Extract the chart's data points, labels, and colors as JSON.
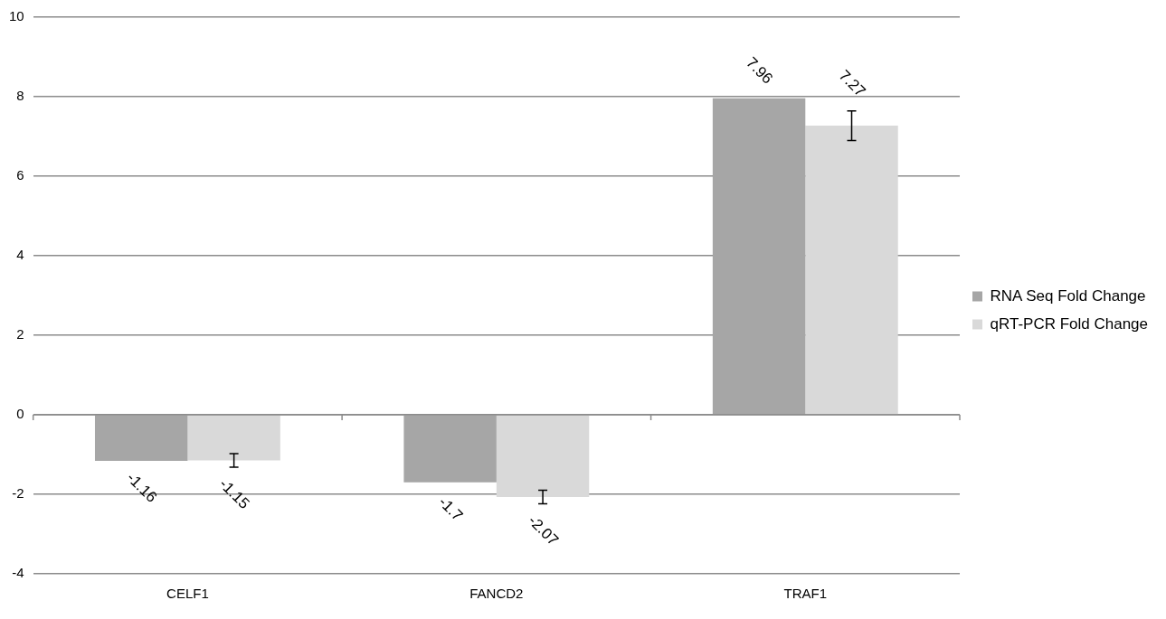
{
  "chart_data": {
    "type": "bar",
    "categories": [
      "CELF1",
      "FANCD2",
      "TRAF1"
    ],
    "series": [
      {
        "name": "RNA Seq Fold Change",
        "color": "#a6a6a6",
        "values": [
          -1.16,
          -1.7,
          7.96
        ]
      },
      {
        "name": "qRT-PCR Fold Change",
        "color": "#d9d9d9",
        "values": [
          -1.15,
          -2.07,
          7.27
        ],
        "errors": [
          0.17,
          0.17,
          0.37
        ]
      }
    ],
    "ylim": [
      -4,
      10
    ],
    "yticks": [
      -4,
      -2,
      0,
      2,
      4,
      6,
      8,
      10
    ],
    "grid": "y",
    "legend": "right",
    "data_labels": true
  }
}
